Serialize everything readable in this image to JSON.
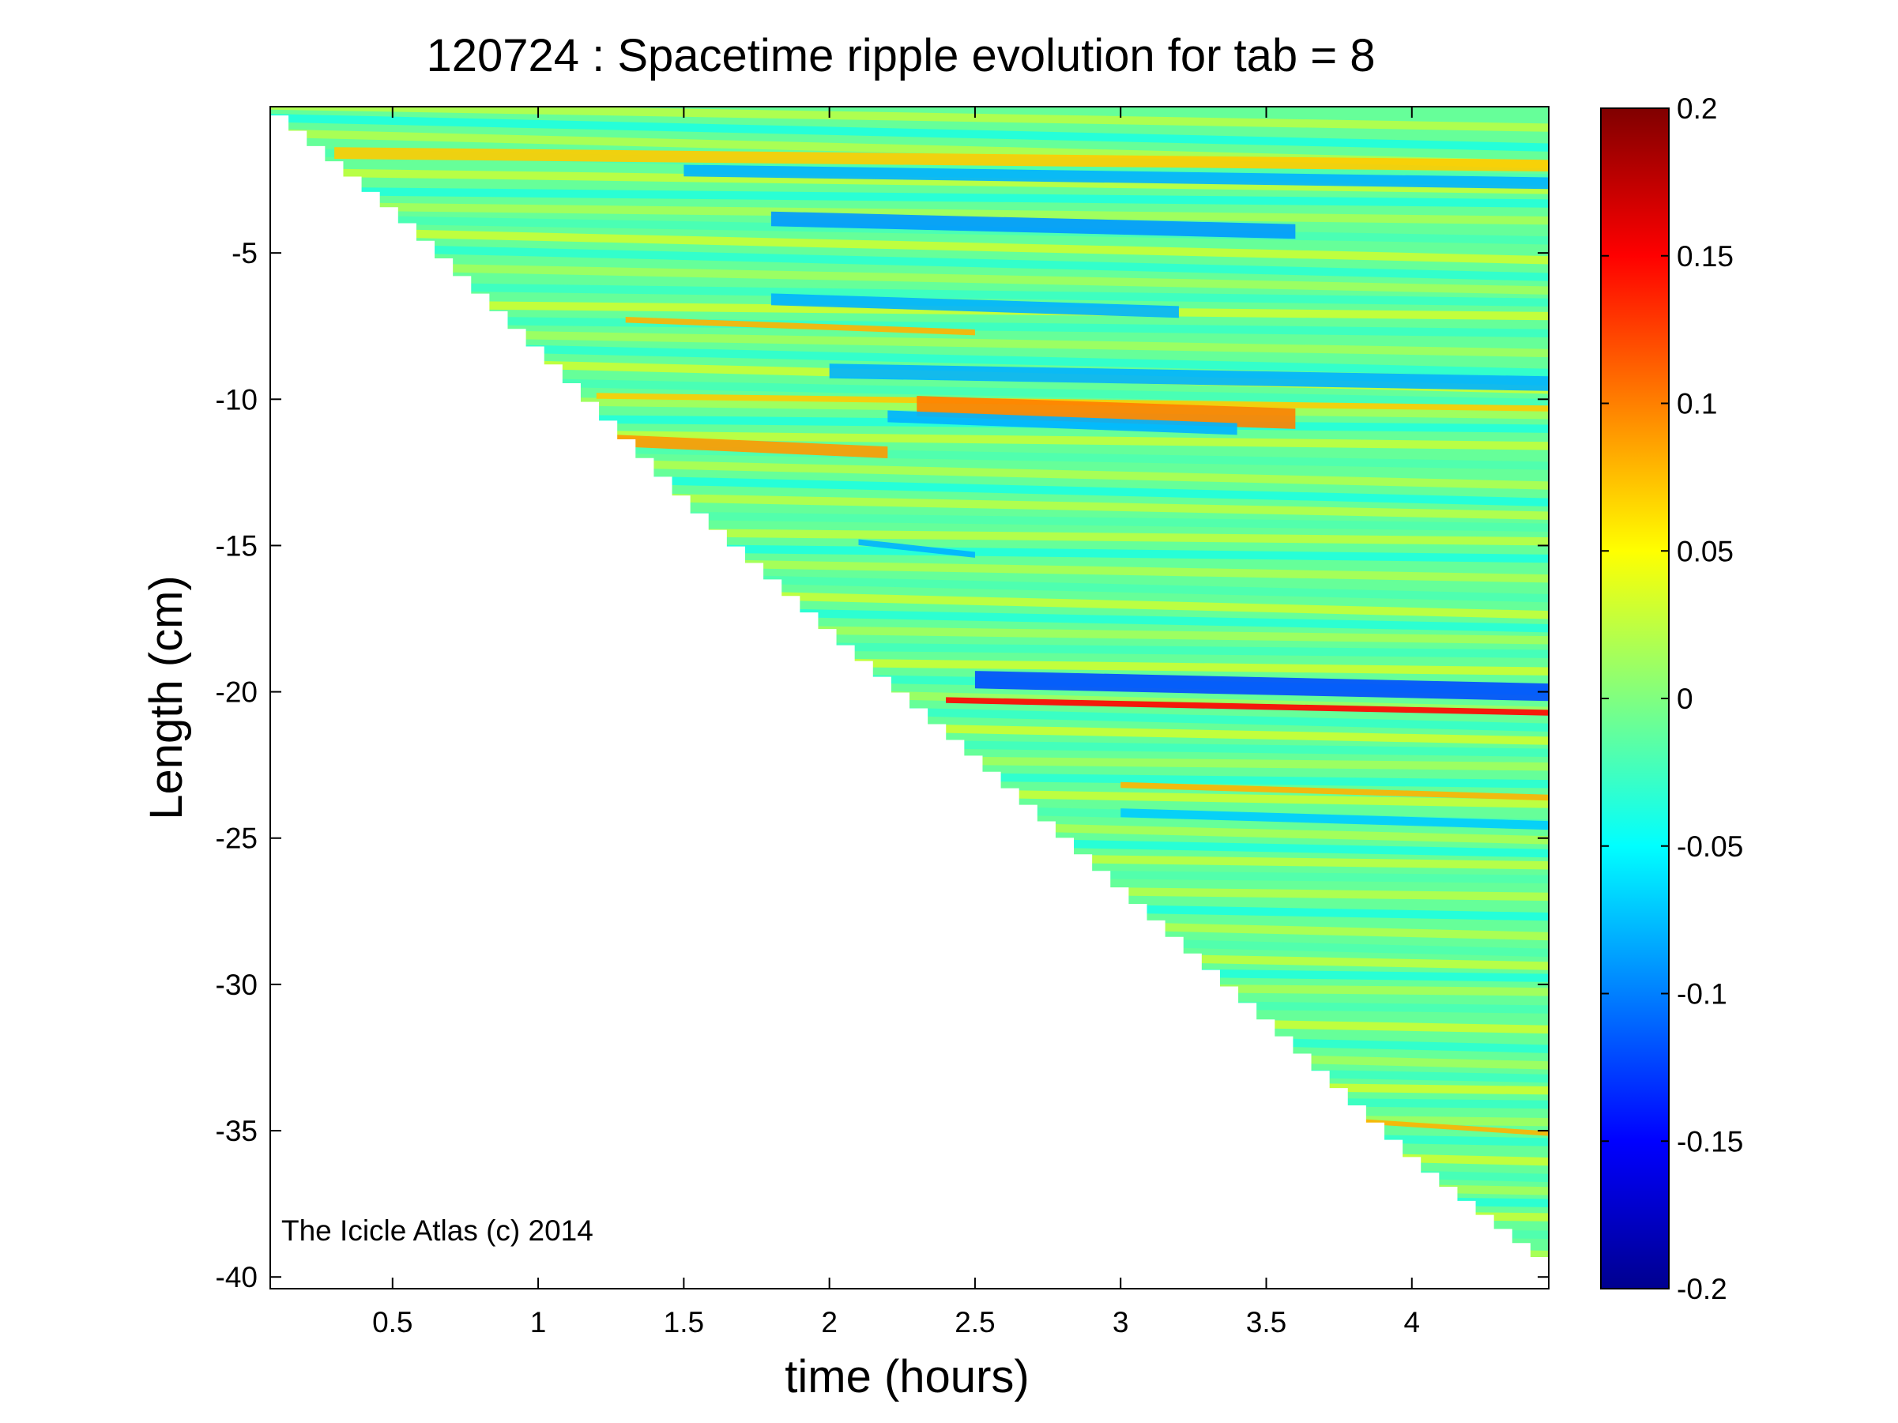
{
  "chart_data": {
    "type": "heatmap",
    "title": "120724 : Spacetime ripple evolution for tab = 8",
    "xlabel": "time (hours)",
    "ylabel": "Length (cm)",
    "xlim": [
      0.08,
      4.47
    ],
    "ylim": [
      -40.4,
      0
    ],
    "x_ticks": [
      0.5,
      1,
      1.5,
      2,
      2.5,
      3,
      3.5,
      4
    ],
    "x_tick_labels": [
      "0.5",
      "1",
      "1.5",
      "2",
      "2.5",
      "3",
      "3.5",
      "4"
    ],
    "y_ticks": [
      -5,
      -10,
      -15,
      -20,
      -25,
      -30,
      -35,
      -40
    ],
    "y_tick_labels": [
      "-5",
      "-10",
      "-15",
      "-20",
      "-25",
      "-30",
      "-35",
      "-40"
    ],
    "colorbar": {
      "min": -0.2,
      "max": 0.2,
      "colormap": "jet",
      "ticks": [
        0.2,
        0.15,
        0.1,
        0.05,
        0,
        -0.05,
        -0.1,
        -0.15,
        -0.2
      ],
      "tick_labels": [
        "0.2",
        "0.15",
        "0.1",
        "0.05",
        "0",
        "-0.05",
        "-0.1",
        "-0.15",
        "-0.2"
      ]
    },
    "growth_front": {
      "description_values": "icicle tip position vs time (data boundary)",
      "points": [
        [
          0.08,
          -0.3
        ],
        [
          0.5,
          -3.8
        ],
        [
          1.0,
          -8.6
        ],
        [
          1.5,
          -13.7
        ],
        [
          2.0,
          -18.2
        ],
        [
          2.5,
          -22.5
        ],
        [
          3.0,
          -27.0
        ],
        [
          3.5,
          -31.5
        ],
        [
          4.0,
          -36.2
        ],
        [
          4.47,
          -39.8
        ]
      ]
    },
    "ripple_bands": [
      {
        "t0": 0.3,
        "t1": 4.47,
        "y0": -2.0,
        "y1": -1.6,
        "value": 0.07
      },
      {
        "t0": 1.5,
        "t1": 4.47,
        "y0": -2.6,
        "y1": -2.2,
        "value": -0.08
      },
      {
        "t0": 1.8,
        "t1": 3.6,
        "y0": -4.3,
        "y1": -3.8,
        "value": -0.09
      },
      {
        "t0": 1.8,
        "t1": 3.2,
        "y0": -7.0,
        "y1": -6.6,
        "value": -0.08
      },
      {
        "t0": 1.3,
        "t1": 2.5,
        "y0": -7.6,
        "y1": -7.4,
        "value": 0.08
      },
      {
        "t0": 2.0,
        "t1": 4.47,
        "y0": -9.5,
        "y1": -9.0,
        "value": -0.08
      },
      {
        "t0": 1.2,
        "t1": 4.47,
        "y0": -10.0,
        "y1": -10.2,
        "value": 0.07
      },
      {
        "t0": 2.3,
        "t1": 3.6,
        "y0": -10.8,
        "y1": -10.1,
        "value": 0.1
      },
      {
        "t0": 2.2,
        "t1": 3.4,
        "y0": -11.0,
        "y1": -10.6,
        "value": -0.08
      },
      {
        "t0": 1.2,
        "t1": 2.2,
        "y0": -11.8,
        "y1": -11.4,
        "value": 0.09
      },
      {
        "t0": 2.1,
        "t1": 2.5,
        "y0": -15.2,
        "y1": -15.0,
        "value": -0.08
      },
      {
        "t0": 2.5,
        "t1": 4.47,
        "y0": -20.1,
        "y1": -19.5,
        "value": -0.12
      },
      {
        "t0": 2.4,
        "t1": 4.47,
        "y0": -20.6,
        "y1": -20.4,
        "value": 0.15
      },
      {
        "t0": 3.0,
        "t1": 4.47,
        "y0": -23.5,
        "y1": -23.3,
        "value": 0.08
      },
      {
        "t0": 3.0,
        "t1": 4.47,
        "y0": -24.5,
        "y1": -24.2,
        "value": -0.07
      },
      {
        "t0": 3.8,
        "t1": 4.47,
        "y0": -34.9,
        "y1": -34.8,
        "value": 0.08
      }
    ]
  },
  "annotations": {
    "watermark": "The Icicle Atlas (c) 2014"
  }
}
